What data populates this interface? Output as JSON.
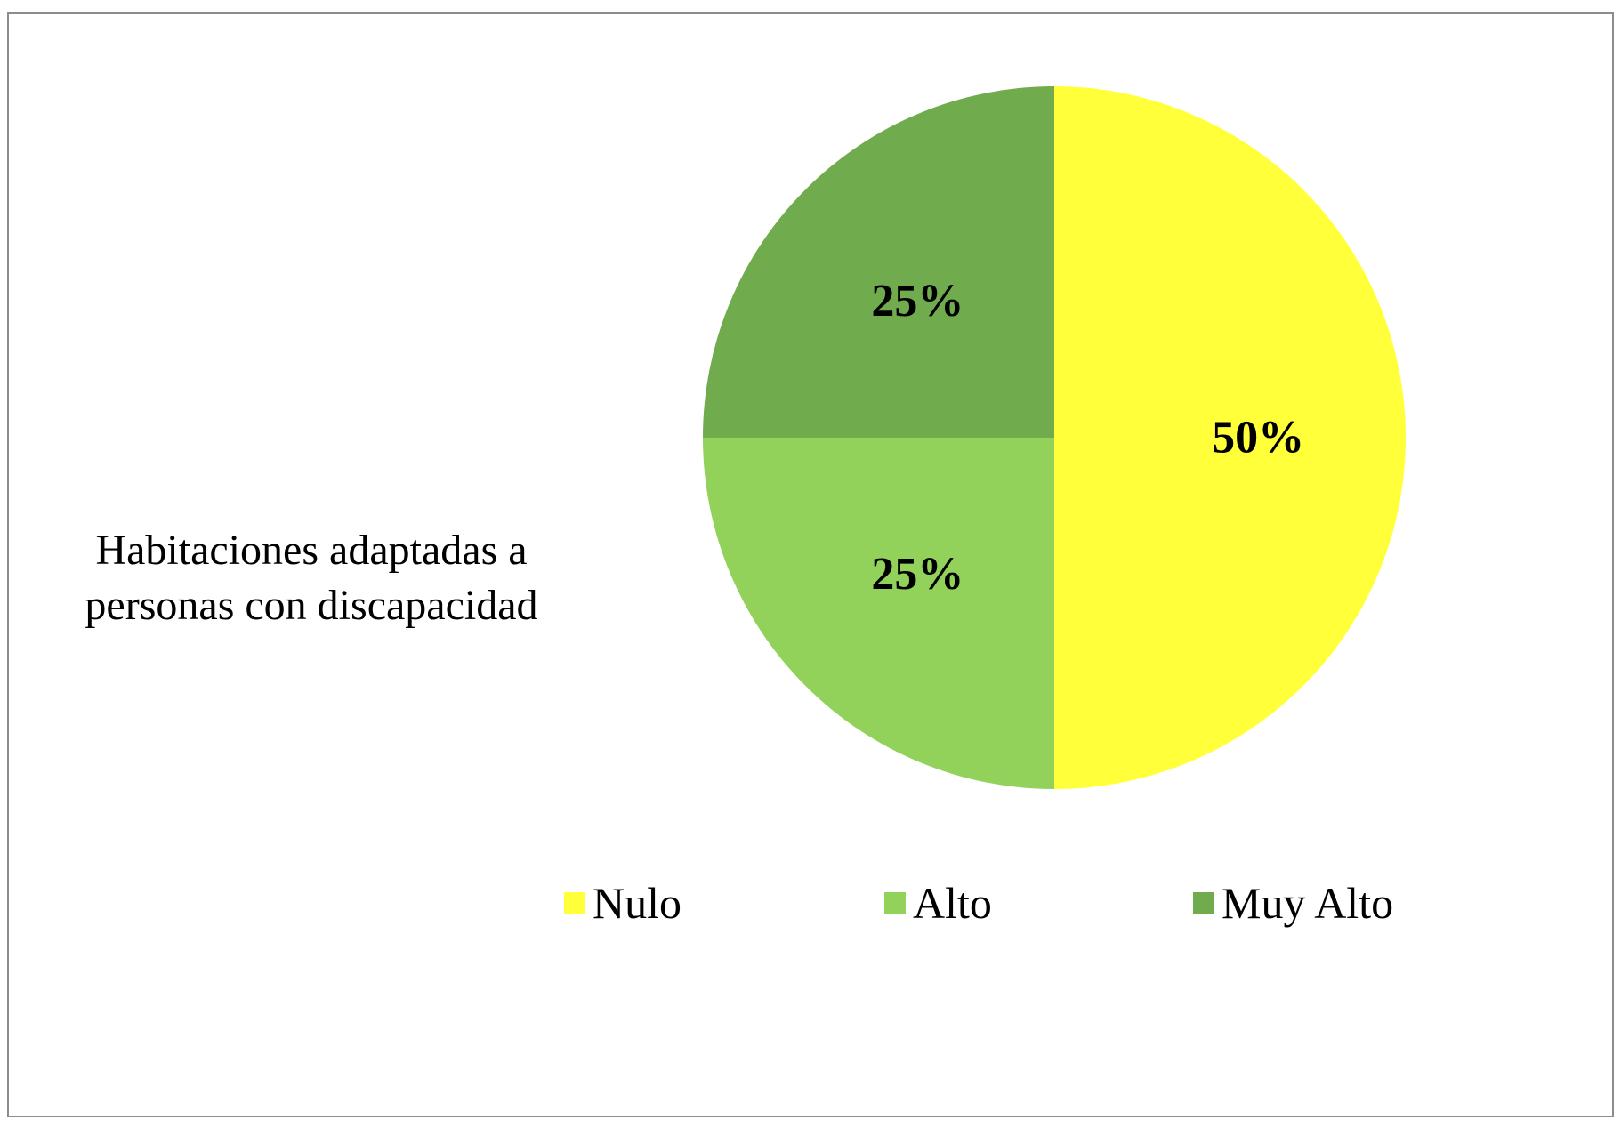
{
  "chart_data": {
    "type": "pie",
    "title": "Habitaciones adaptadas a personas con discapacidad",
    "categories": [
      "Nulo",
      "Alto",
      "Muy Alto"
    ],
    "values": [
      50,
      25,
      25
    ],
    "labels": [
      "50%",
      "25%",
      "25%"
    ],
    "colors": [
      "#FFFF3A",
      "#92D25A",
      "#70AB4E"
    ],
    "start_angle_deg": 0,
    "direction": "clockwise",
    "legend_position": "bottom"
  }
}
